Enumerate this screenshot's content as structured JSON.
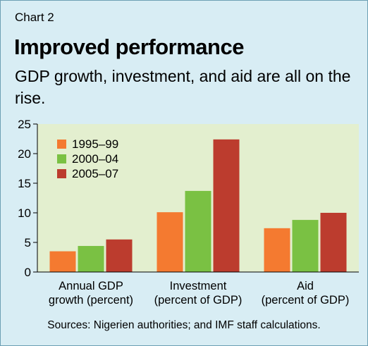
{
  "header": {
    "chart_label": "Chart 2",
    "title": "Improved performance",
    "subtitle": "GDP growth, investment, and aid are all on the rise."
  },
  "footer": {
    "source": "Sources: Nigerien authorities; and IMF staff calculations."
  },
  "colors": {
    "background": "#d8edf4",
    "plot_area": "#e3efcf",
    "series": [
      "#f47a30",
      "#7ac143",
      "#bc3c2e"
    ]
  },
  "chart_data": {
    "type": "bar",
    "title": "",
    "xlabel": "",
    "ylabel": "",
    "ylim": [
      0,
      25
    ],
    "yticks": [
      0,
      5,
      10,
      15,
      20,
      25
    ],
    "grid": false,
    "legend_position": "top-left",
    "categories": [
      [
        "Annual GDP",
        "growth (percent)"
      ],
      [
        "Investment",
        "(percent of GDP)"
      ],
      [
        "Aid",
        "(percent of GDP)"
      ]
    ],
    "series": [
      {
        "name": "1995–99",
        "values": [
          3.5,
          10.1,
          7.4
        ]
      },
      {
        "name": "2000–04",
        "values": [
          4.4,
          13.7,
          8.8
        ]
      },
      {
        "name": "2005–07",
        "values": [
          5.5,
          22.4,
          10.0
        ]
      }
    ]
  }
}
